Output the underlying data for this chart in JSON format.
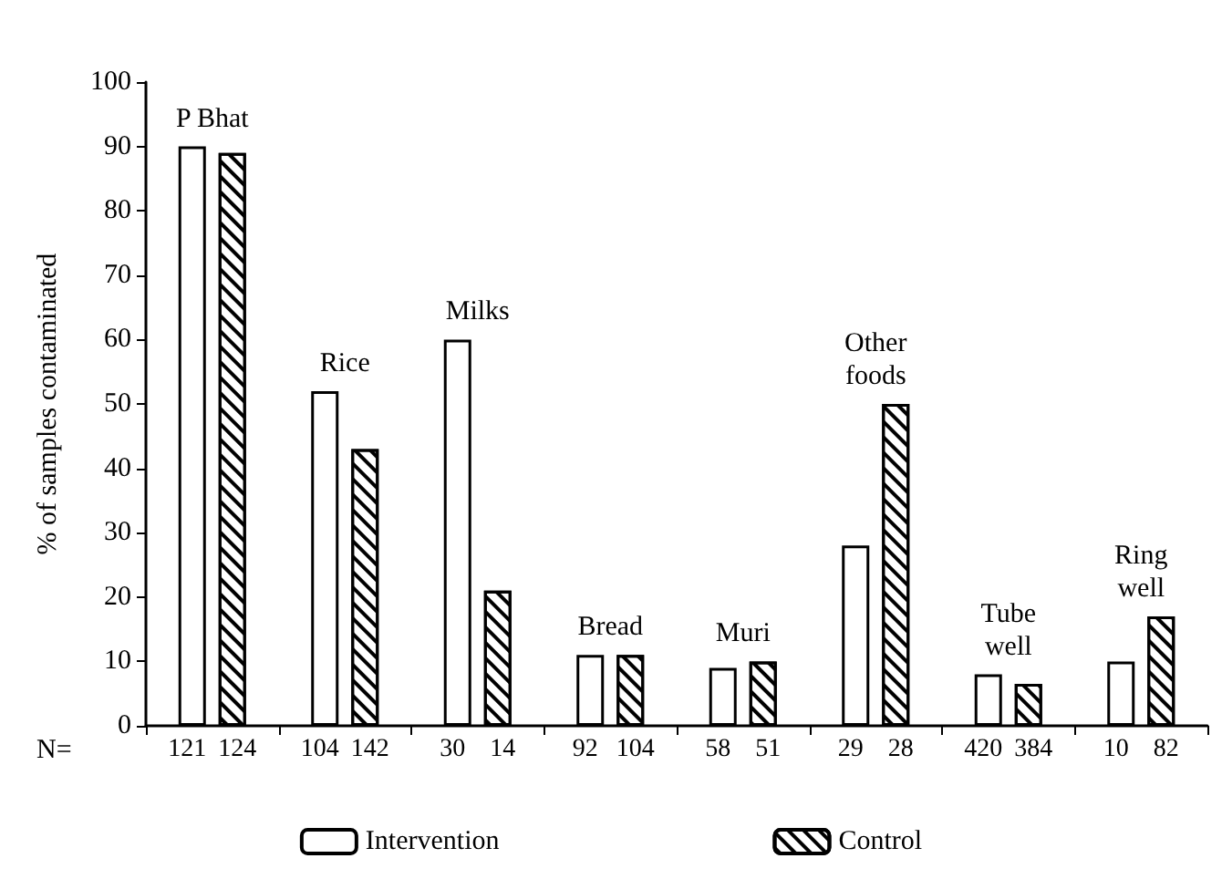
{
  "chart_data": {
    "type": "bar",
    "ylabel": "% of samples contaminated",
    "categories": [
      "P Bhat",
      "Rice",
      "Milks",
      "Bread",
      "Muri",
      "Other foods",
      "Tube well",
      "Ring well"
    ],
    "series": [
      {
        "name": "Intervention",
        "color": "#ffffff",
        "values": [
          90,
          52,
          60,
          11,
          9,
          28,
          8,
          10
        ]
      },
      {
        "name": "Control",
        "color": "#000000",
        "values": [
          89,
          43,
          21,
          11,
          10,
          50,
          6.5,
          17
        ]
      }
    ],
    "ylim": [
      0,
      100
    ],
    "yticks": [
      0,
      10,
      20,
      30,
      40,
      50,
      60,
      70,
      80,
      90,
      100
    ],
    "grid": false,
    "legend": "bottom",
    "annotations": [
      "N=",
      "121",
      "124",
      "104",
      "142",
      "30",
      "14",
      "92",
      "104",
      "58",
      "51",
      "29",
      "28",
      "420",
      "384",
      "10",
      "82"
    ]
  }
}
